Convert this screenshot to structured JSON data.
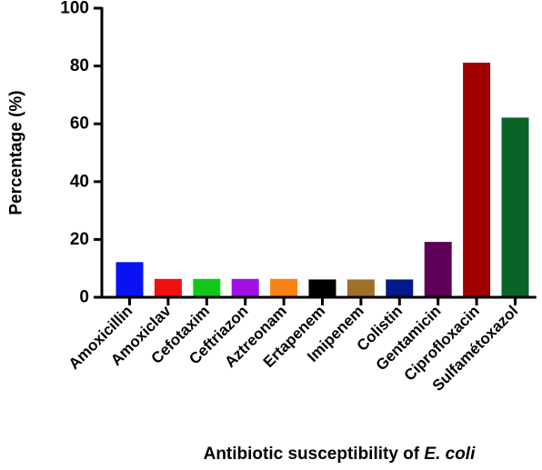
{
  "chart_data": {
    "type": "bar",
    "ylabel": "Percentage (%)",
    "xlabel_prefix": "Antibiotic susceptibility of ",
    "xlabel_italic": "E. coli",
    "ylim": [
      0,
      100
    ],
    "yticks": [
      0,
      20,
      40,
      60,
      80,
      100
    ],
    "grid": false,
    "categories": [
      "Amoxicillin",
      "Amoxiclav",
      "Cefotaxim",
      "Ceftriazon",
      "Aztreonam",
      "Ertapenem",
      "Imipenem",
      "Colistin",
      "Gentamicin",
      "Ciprofloxacin",
      "Sulfamétoxazol"
    ],
    "values": [
      12,
      6.2,
      6.2,
      6.2,
      6.2,
      6,
      6,
      6,
      19,
      81,
      62
    ],
    "colors": [
      "#0a12f5",
      "#f01010",
      "#10c81c",
      "#a010e0",
      "#fa8214",
      "#000000",
      "#a07028",
      "#001a8c",
      "#5e0058",
      "#a00000",
      "#0a6428"
    ]
  }
}
